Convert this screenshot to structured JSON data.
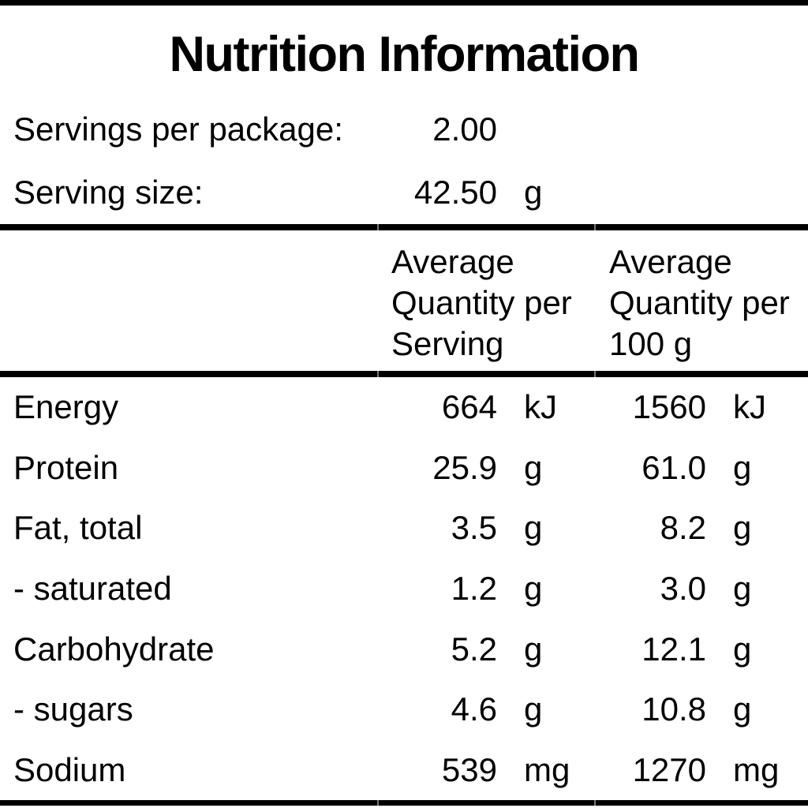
{
  "title": "Nutrition Information",
  "serving_info": {
    "servings_per_package_label": "Servings per package:",
    "servings_per_package_value": "2.00",
    "serving_size_label": "Serving size:",
    "serving_size_value": "42.50",
    "serving_size_unit": "g"
  },
  "table": {
    "header_per_serving": "Average Quantity per Serving",
    "header_per_100g": "Average Quantity per 100 g",
    "rows": [
      {
        "nutrient": "Energy",
        "per_serving_value": "664",
        "per_serving_unit": "kJ",
        "per_100g_value": "1560",
        "per_100g_unit": "kJ"
      },
      {
        "nutrient": "Protein",
        "per_serving_value": "25.9",
        "per_serving_unit": "g",
        "per_100g_value": "61.0",
        "per_100g_unit": "g"
      },
      {
        "nutrient": "Fat, total",
        "per_serving_value": "3.5",
        "per_serving_unit": "g",
        "per_100g_value": "8.2",
        "per_100g_unit": "g"
      },
      {
        "nutrient": "- saturated",
        "per_serving_value": "1.2",
        "per_serving_unit": "g",
        "per_100g_value": "3.0",
        "per_100g_unit": "g"
      },
      {
        "nutrient": "Carbohydrate",
        "per_serving_value": "5.2",
        "per_serving_unit": "g",
        "per_100g_value": "12.1",
        "per_100g_unit": "g"
      },
      {
        "nutrient": "- sugars",
        "per_serving_value": "4.6",
        "per_serving_unit": "g",
        "per_100g_value": "10.8",
        "per_100g_unit": "g"
      },
      {
        "nutrient": "Sodium",
        "per_serving_value": "539",
        "per_serving_unit": "mg",
        "per_100g_value": "1270",
        "per_100g_unit": "mg"
      }
    ]
  },
  "colors": {
    "text": "#000000",
    "background": "#ffffff",
    "rule": "#000000"
  }
}
